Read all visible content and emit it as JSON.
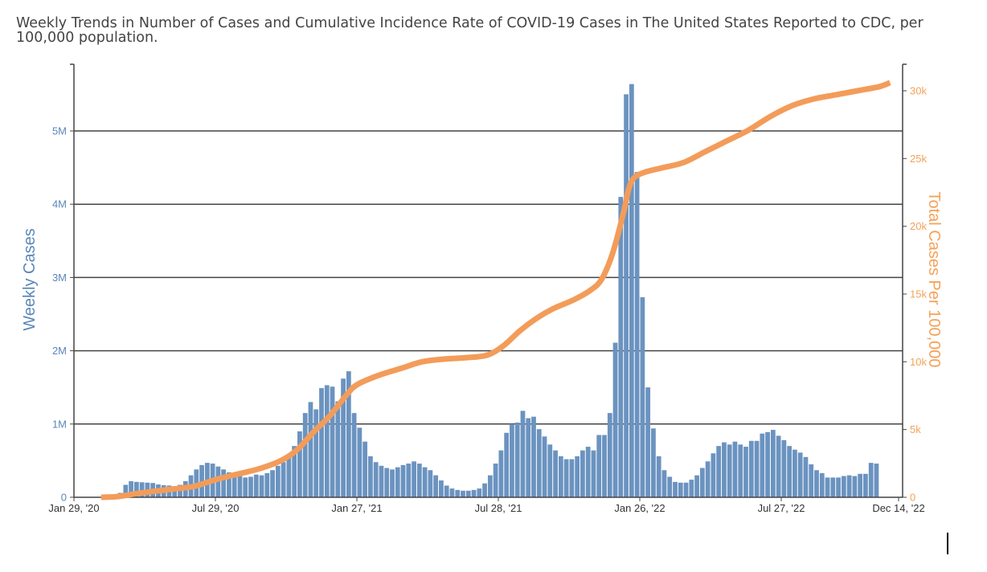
{
  "chart_data": {
    "type": "bar",
    "title": "Weekly Trends in Number of Cases and Cumulative Incidence Rate of COVID-19 Cases in The United States Reported to CDC, per 100,000 population.",
    "xlabel": "",
    "ylabel": "Weekly Cases",
    "y2label": "Total Cases Per 100,000",
    "ylim": [
      0,
      5800000
    ],
    "y2lim": [
      0,
      31800
    ],
    "grid": true,
    "legend": "none",
    "colors": {
      "bars": "#6b93c0",
      "line": "#f39c5a",
      "axis": "#444444",
      "grid": "#444444"
    },
    "x_tick_labels": [
      "Jan 29, '20",
      "Jul 29, '20",
      "Jan 27, '21",
      "Jul 28, '21",
      "Jan 26, '22",
      "Jul 27, '22",
      "Dec 14, '22"
    ],
    "x_tick_weeks": [
      0,
      26,
      52,
      78,
      104,
      130,
      150
    ],
    "y_ticks": [
      {
        "value": 0,
        "label": "0"
      },
      {
        "value": 1000000,
        "label": "1M"
      },
      {
        "value": 2000000,
        "label": "2M"
      },
      {
        "value": 3000000,
        "label": "3M"
      },
      {
        "value": 4000000,
        "label": "4M"
      },
      {
        "value": 5000000,
        "label": "5M"
      }
    ],
    "y2_ticks": [
      {
        "value": 0,
        "label": "0"
      },
      {
        "value": 5000,
        "label": "5k"
      },
      {
        "value": 10000,
        "label": "10k"
      },
      {
        "value": 15000,
        "label": "15k"
      },
      {
        "value": 20000,
        "label": "20k"
      },
      {
        "value": 25000,
        "label": "25k"
      },
      {
        "value": 30000,
        "label": "30k"
      }
    ],
    "series": [
      {
        "name": "Weekly Cases",
        "kind": "bar",
        "axis": "left",
        "start_week": 0,
        "values": [
          0,
          0,
          0,
          0,
          0,
          0,
          0,
          10000,
          60000,
          170000,
          220000,
          210000,
          205000,
          200000,
          195000,
          175000,
          165000,
          160000,
          150000,
          170000,
          220000,
          300000,
          380000,
          440000,
          470000,
          460000,
          420000,
          380000,
          340000,
          310000,
          290000,
          270000,
          280000,
          310000,
          300000,
          330000,
          370000,
          430000,
          480000,
          540000,
          700000,
          900000,
          1150000,
          1300000,
          1200000,
          1490000,
          1530000,
          1510000,
          1310000,
          1620000,
          1720000,
          1150000,
          950000,
          760000,
          560000,
          480000,
          430000,
          400000,
          380000,
          410000,
          440000,
          460000,
          490000,
          460000,
          410000,
          370000,
          300000,
          230000,
          160000,
          120000,
          100000,
          90000,
          90000,
          100000,
          120000,
          190000,
          300000,
          460000,
          640000,
          880000,
          1000000,
          1020000,
          1180000,
          1080000,
          1100000,
          930000,
          830000,
          720000,
          640000,
          560000,
          520000,
          520000,
          560000,
          640000,
          690000,
          640000,
          850000,
          850000,
          1150000,
          2110000,
          4100000,
          5500000,
          5640000,
          4440000,
          2730000,
          1500000,
          940000,
          560000,
          370000,
          280000,
          210000,
          200000,
          200000,
          240000,
          300000,
          400000,
          490000,
          600000,
          700000,
          750000,
          720000,
          760000,
          720000,
          690000,
          770000,
          770000,
          870000,
          890000,
          920000,
          840000,
          780000,
          700000,
          650000,
          610000,
          550000,
          450000,
          370000,
          330000,
          270000,
          270000,
          270000,
          290000,
          300000,
          290000,
          320000,
          320000,
          470000,
          460000
        ]
      },
      {
        "name": "Total Cases Per 100,000",
        "kind": "line",
        "axis": "right",
        "points": [
          [
            5,
            0
          ],
          [
            8,
            50
          ],
          [
            12,
            300
          ],
          [
            18,
            600
          ],
          [
            22,
            800
          ],
          [
            26,
            1300
          ],
          [
            30,
            1700
          ],
          [
            34,
            2100
          ],
          [
            38,
            2700
          ],
          [
            41,
            3500
          ],
          [
            44,
            4800
          ],
          [
            47,
            6000
          ],
          [
            50,
            7500
          ],
          [
            52,
            8300
          ],
          [
            56,
            9000
          ],
          [
            60,
            9500
          ],
          [
            64,
            10000
          ],
          [
            68,
            10200
          ],
          [
            72,
            10300
          ],
          [
            76,
            10500
          ],
          [
            79,
            11200
          ],
          [
            82,
            12300
          ],
          [
            85,
            13200
          ],
          [
            88,
            13900
          ],
          [
            92,
            14600
          ],
          [
            95,
            15300
          ],
          [
            97,
            16100
          ],
          [
            99,
            18000
          ],
          [
            101,
            21000
          ],
          [
            102,
            22800
          ],
          [
            103,
            23600
          ],
          [
            105,
            24000
          ],
          [
            108,
            24300
          ],
          [
            112,
            24700
          ],
          [
            116,
            25500
          ],
          [
            120,
            26300
          ],
          [
            124,
            27100
          ],
          [
            128,
            28100
          ],
          [
            132,
            28900
          ],
          [
            136,
            29400
          ],
          [
            140,
            29700
          ],
          [
            144,
            30000
          ],
          [
            148,
            30300
          ],
          [
            150,
            30600
          ]
        ]
      }
    ]
  }
}
